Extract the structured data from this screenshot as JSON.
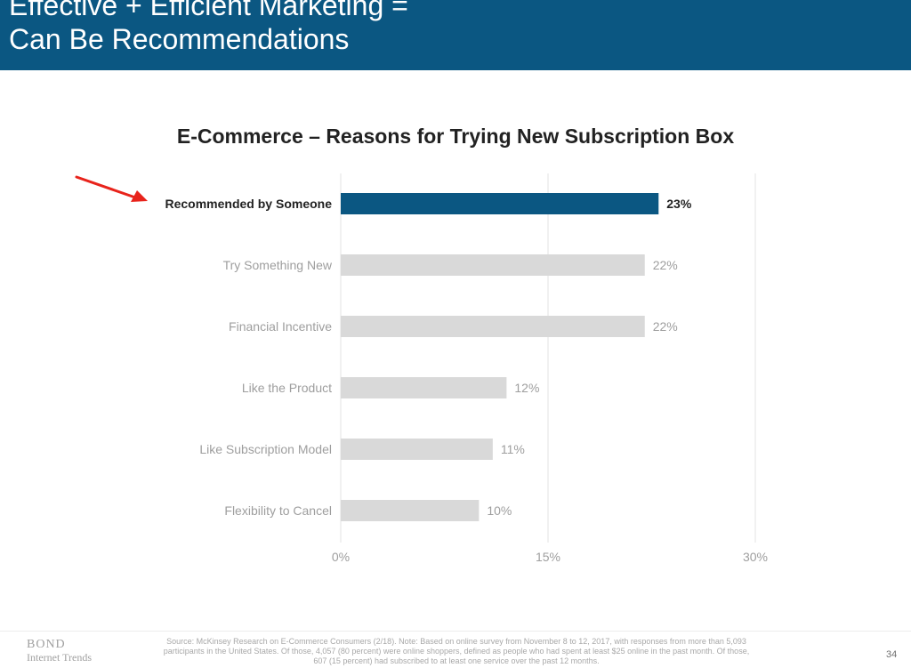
{
  "slide": {
    "title_line1": "Effective + Efficient Marketing =",
    "title_line2": "Can Be Recommendations",
    "page_number": "34",
    "footer_logo_line1": "BOND",
    "footer_logo_line2": "Internet Trends",
    "source_note": "Source: McKinsey Research on E-Commerce Consumers (2/18).  Note: Based on online survey from November 8 to 12, 2017, with responses from more than 5,093 participants in the United States. Of those, 4,057 (80 percent) were online shoppers, defined as people who had spent at least $25 online in the past month. Of those, 607 (15 percent) had subscribed to at least one service over the past 12 months.",
    "header_color": "#0b5782"
  },
  "chart_data": {
    "type": "bar",
    "orientation": "horizontal",
    "title": "E-Commerce – Reasons for Trying New Subscription Box",
    "categories": [
      "Recommended by Someone",
      "Try Something New",
      "Financial Incentive",
      "Like the Product",
      "Like Subscription Model",
      "Flexibility to Cancel"
    ],
    "values": [
      23,
      22,
      22,
      12,
      11,
      10
    ],
    "value_labels": [
      "23%",
      "22%",
      "22%",
      "12%",
      "11%",
      "10%"
    ],
    "highlighted_category": "Recommended by Someone",
    "xlim": [
      0,
      30
    ],
    "x_ticks": [
      0,
      15,
      30
    ],
    "x_tick_labels": [
      "0%",
      "15%",
      "30%"
    ],
    "grid": "vertical",
    "colors": {
      "highlight": "#0b5782",
      "bar": "#d9d9d9",
      "highlight_text": "#222222",
      "muted_text": "#9e9e9e",
      "grid": "#e3e3e3",
      "arrow": "#e8231b"
    }
  }
}
